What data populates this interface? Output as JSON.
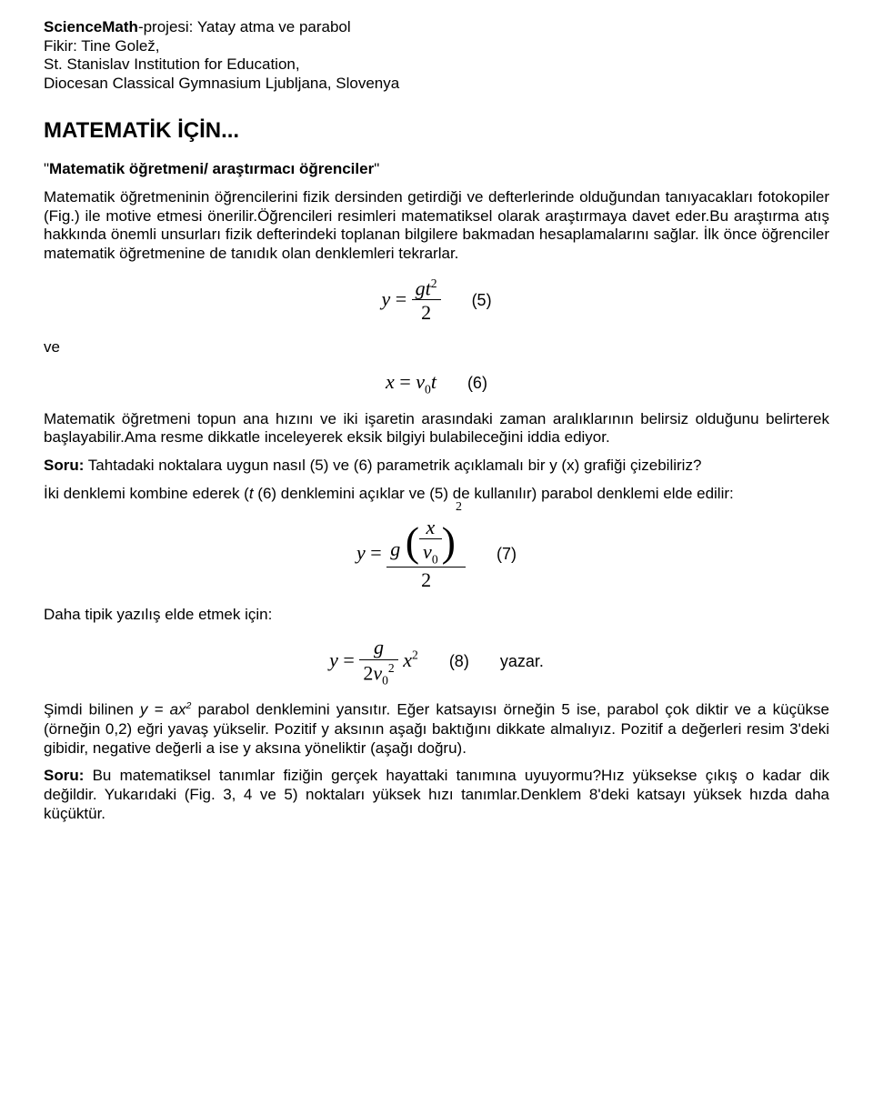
{
  "meta": {
    "project_prefix": "ScienceMath",
    "project_rest": "-projesi: Yatay atma ve parabol",
    "line2": "Fikir: Tine Golež,",
    "line3": "St. Stanislav Institution for Education,",
    "line4": "Diocesan Classical Gymnasium Ljubljana, Slovenya"
  },
  "heading": "MATEMATİK İÇİN...",
  "intro": {
    "quote_title": "Matematik öğretmeni/ araştırmacı öğrenciler",
    "body": "Matematik öğretmeninin öğrencilerini fizik dersinden getirdiği ve defterlerinde olduğundan tanıyacakları fotokopiler (Fig.) ile motive etmesi önerilir.Öğrencileri resimleri matematiksel olarak araştırmaya davet eder.Bu araştırma atış hakkında önemli unsurları fizik defterindeki toplanan bilgilere bakmadan hesaplamalarını sağlar. İlk önce öğrenciler matematik öğretmenine de tanıdık olan denklemleri tekrarlar."
  },
  "eq5_num": "(5)",
  "ve": "ve",
  "eq6_num": "(6)",
  "para2": "Matematik öğretmeni topun ana hızını ve iki işaretin arasındaki zaman aralıklarının belirsiz olduğunu belirterek başlayabilir.Ama resme dikkatle inceleyerek eksik bilgiyi bulabileceğini iddia ediyor.",
  "q1": {
    "label": "Soru:",
    "text": " Tahtadaki noktalara uygun nasıl (5) ve (6) parametrik açıklamalı bir y (x) grafiği çizebiliriz?"
  },
  "para3": "İki denklemi kombine ederek  (",
  "para3_t": "t",
  "para3_b": " (6) denklemini açıklar ve (5) de kullanılır) parabol denklemi elde edilir:",
  "eq7_num": "(7)",
  "para4": "Daha tipik yazılış elde etmek için:",
  "eq8_num": "(8)",
  "eq8_after": "yazar.",
  "para5a": "Şimdi bilinen ",
  "para5eq": "y = ax",
  "para5b": "  parabol denklemini yansıtır. Eğer katsayısı örneğin 5 ise, parabol çok diktir ve a küçükse (örneğin 0,2) eğri yavaş yükselir. Pozitif y aksının aşağı baktığını dikkate almalıyız. Pozitif a değerleri resim 3'deki gibidir, negative değerli a ise y aksına yöneliktir (aşağı doğru).",
  "q2": {
    "label": "Soru:",
    "text": " Bu matematiksel tanımlar fiziğin gerçek hayattaki tanımına uyuyormu?Hız yüksekse çıkış o kadar dik değildir. Yukarıdaki (Fig. 3, 4 ve 5) noktaları yüksek hızı tanımlar.Denklem 8'deki katsayı yüksek hızda daha küçüktür."
  }
}
